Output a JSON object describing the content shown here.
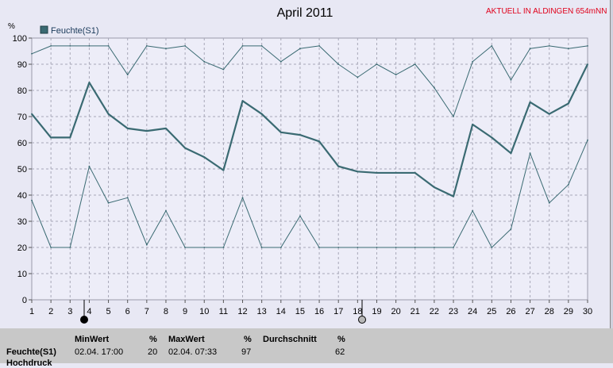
{
  "header": {
    "station": "AKTUELL IN ALDINGEN 654mNN"
  },
  "colors": {
    "series": "#3a6a72",
    "grid": "#a8a8b8",
    "background": "#e8e8f4",
    "station_text": "#e0001a"
  },
  "chart_data": {
    "type": "line",
    "title": "April 2011",
    "xlabel": "",
    "ylabel": "%",
    "xlim": [
      1,
      30
    ],
    "ylim": [
      0,
      100
    ],
    "xticks": [
      1,
      2,
      3,
      4,
      5,
      6,
      7,
      8,
      9,
      10,
      11,
      12,
      13,
      14,
      15,
      16,
      17,
      18,
      19,
      20,
      21,
      22,
      23,
      24,
      25,
      26,
      27,
      28,
      29,
      30
    ],
    "yticks": [
      0,
      10,
      20,
      30,
      40,
      50,
      60,
      70,
      80,
      90,
      100
    ],
    "grid": true,
    "legend": [
      "Feuchte(S1)"
    ],
    "legend_position": "top-left",
    "x": [
      1,
      2,
      3,
      4,
      5,
      6,
      7,
      8,
      9,
      10,
      11,
      12,
      13,
      14,
      15,
      16,
      17,
      18,
      19,
      20,
      21,
      22,
      23,
      24,
      25,
      26,
      27,
      28,
      29,
      30
    ],
    "series": [
      {
        "name": "Feuchte(S1)",
        "role": "max",
        "values": [
          94,
          97,
          97,
          97,
          97,
          86,
          97,
          96,
          97,
          91,
          88,
          97,
          97,
          91,
          96,
          97,
          90,
          85,
          90,
          86,
          90,
          81,
          70,
          91,
          97,
          84,
          96,
          97,
          96,
          97
        ]
      },
      {
        "name": "Feuchte(S1)",
        "role": "mean",
        "values": [
          71,
          62,
          62,
          83,
          71,
          65.5,
          64.5,
          65.5,
          58,
          54.5,
          49.5,
          76,
          71,
          64,
          63,
          60.5,
          51,
          49,
          48.5,
          48.5,
          48.5,
          43,
          39.5,
          67,
          62,
          56,
          75.5,
          71,
          75,
          90
        ]
      },
      {
        "name": "Feuchte(S1)",
        "role": "min",
        "values": [
          38,
          20,
          20,
          51,
          37,
          39,
          21,
          34,
          20,
          20,
          20,
          39,
          20,
          20,
          32,
          20,
          20,
          20,
          20,
          20,
          20,
          20,
          20,
          34,
          20,
          27,
          56,
          37,
          44,
          61
        ]
      }
    ]
  },
  "stats": {
    "min_header": "MinWert",
    "max_header": "MaxWert",
    "avg_header": "Durchschnitt",
    "unit": "%",
    "rows": [
      {
        "label": "Feuchte(S1)",
        "min_time": "02.04.  17:00",
        "min_value": "20",
        "max_time": "02.04.  07:33",
        "max_value": "97",
        "avg_value": "62"
      },
      {
        "label": "Hochdruck"
      }
    ]
  }
}
